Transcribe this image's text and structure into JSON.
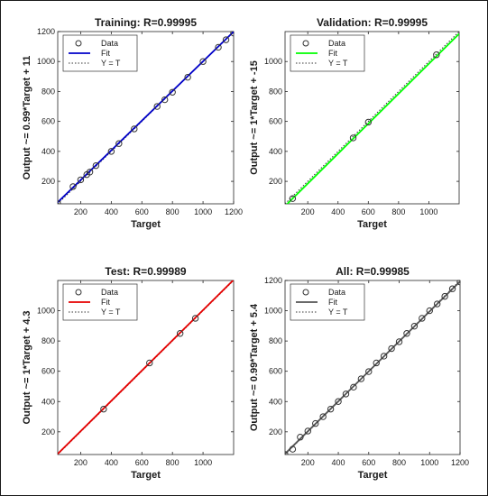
{
  "chart_data": [
    {
      "type": "scatter",
      "title": "Training: R=0.99995",
      "xlabel": "Target",
      "ylabel": "Output ~= 0.99*Target + 11",
      "xlim": [
        50,
        1200
      ],
      "ylim": [
        50,
        1200
      ],
      "xticks": [
        200,
        400,
        600,
        800,
        1000,
        1200
      ],
      "yticks": [
        200,
        400,
        600,
        800,
        1000,
        1200
      ],
      "fit_color": "#0000c8",
      "fit_line": {
        "slope": 0.99,
        "intercept": 11
      },
      "legend": [
        "Data",
        "Fit",
        "Y = T"
      ],
      "legend_position": "top-left",
      "points": [
        [
          50,
          50
        ],
        [
          150,
          165
        ],
        [
          200,
          210
        ],
        [
          240,
          245
        ],
        [
          260,
          262
        ],
        [
          300,
          305
        ],
        [
          400,
          400
        ],
        [
          450,
          452
        ],
        [
          550,
          550
        ],
        [
          700,
          700
        ],
        [
          750,
          745
        ],
        [
          800,
          795
        ],
        [
          900,
          895
        ],
        [
          1000,
          1000
        ],
        [
          1100,
          1095
        ],
        [
          1150,
          1145
        ],
        [
          1200,
          1190
        ]
      ]
    },
    {
      "type": "scatter",
      "title": "Validation: R=0.99995",
      "xlabel": "Target",
      "ylabel": "Output ~= 1*Target + -15",
      "xlim": [
        50,
        1200
      ],
      "ylim": [
        50,
        1200
      ],
      "xticks": [
        200,
        400,
        600,
        800,
        1000
      ],
      "yticks": [
        200,
        400,
        600,
        800,
        1000
      ],
      "fit_color": "#00ff00",
      "fit_line": {
        "slope": 1.0,
        "intercept": -15
      },
      "legend": [
        "Data",
        "Fit",
        "Y = T"
      ],
      "legend_position": "top-left",
      "points": [
        [
          100,
          85
        ],
        [
          500,
          490
        ],
        [
          600,
          595
        ],
        [
          1050,
          1045
        ]
      ]
    },
    {
      "type": "scatter",
      "title": "Test: R=0.99989",
      "xlabel": "Target",
      "ylabel": "Output ~= 1*Target + 4.3",
      "xlim": [
        50,
        1200
      ],
      "ylim": [
        50,
        1200
      ],
      "xticks": [
        200,
        400,
        600,
        800,
        1000
      ],
      "yticks": [
        200,
        400,
        600,
        800,
        1000
      ],
      "fit_color": "#e60000",
      "fit_line": {
        "slope": 1.0,
        "intercept": 4.3
      },
      "legend": [
        "Data",
        "Fit",
        "Y = T"
      ],
      "legend_position": "top-left",
      "points": [
        [
          350,
          350
        ],
        [
          650,
          655
        ],
        [
          850,
          850
        ],
        [
          950,
          950
        ]
      ]
    },
    {
      "type": "scatter",
      "title": "All: R=0.99985",
      "xlabel": "Target",
      "ylabel": "Output ~= 0.99*Target + 5.4",
      "xlim": [
        50,
        1200
      ],
      "ylim": [
        50,
        1200
      ],
      "xticks": [
        200,
        400,
        600,
        800,
        1000,
        1200
      ],
      "yticks": [
        200,
        400,
        600,
        800,
        1000,
        1200
      ],
      "fit_color": "#555555",
      "fit_line": {
        "slope": 0.99,
        "intercept": 5.4
      },
      "legend": [
        "Data",
        "Fit",
        "Y = T"
      ],
      "legend_position": "top-left",
      "points": [
        [
          50,
          50
        ],
        [
          100,
          85
        ],
        [
          150,
          165
        ],
        [
          200,
          205
        ],
        [
          250,
          255
        ],
        [
          300,
          300
        ],
        [
          350,
          350
        ],
        [
          400,
          400
        ],
        [
          450,
          450
        ],
        [
          500,
          495
        ],
        [
          550,
          550
        ],
        [
          600,
          598
        ],
        [
          650,
          655
        ],
        [
          700,
          700
        ],
        [
          750,
          750
        ],
        [
          800,
          795
        ],
        [
          850,
          850
        ],
        [
          900,
          898
        ],
        [
          950,
          950
        ],
        [
          1000,
          1000
        ],
        [
          1050,
          1045
        ],
        [
          1100,
          1095
        ],
        [
          1150,
          1145
        ],
        [
          1200,
          1190
        ]
      ]
    }
  ]
}
